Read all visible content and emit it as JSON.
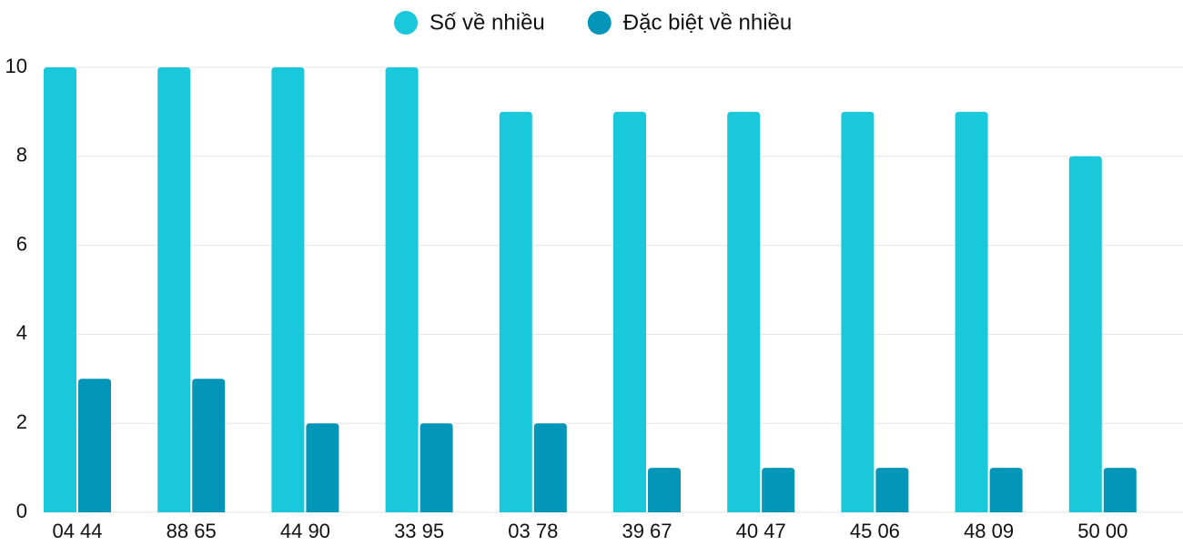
{
  "chart_data": {
    "type": "bar",
    "categories": [
      "04 44",
      "88 65",
      "44 90",
      "33 95",
      "03 78",
      "39 67",
      "40 47",
      "45 06",
      "48 09",
      "50 00"
    ],
    "series": [
      {
        "name": "Số về nhiều",
        "color": "#1ac8db",
        "values": [
          10,
          10,
          10,
          10,
          9,
          9,
          9,
          9,
          9,
          8
        ]
      },
      {
        "name": "Đặc biệt về nhiều",
        "color": "#0396b8",
        "values": [
          3,
          3,
          2,
          2,
          2,
          1,
          1,
          1,
          1,
          1
        ]
      }
    ],
    "ylim": [
      0,
      10
    ],
    "yticks": [
      0,
      2,
      4,
      6,
      8,
      10
    ],
    "grid": true,
    "legend": "top"
  }
}
